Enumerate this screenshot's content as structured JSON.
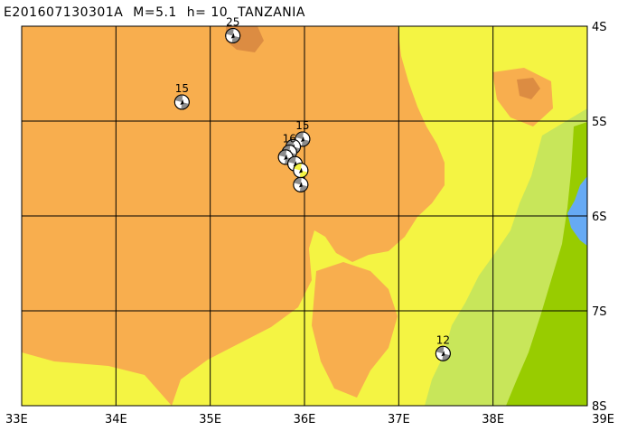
{
  "header": {
    "event_id": "E201607130301A",
    "magnitude": "M=5.1",
    "depth": "h= 10",
    "region": "TANZANIA"
  },
  "map": {
    "lon_range": [
      33,
      39
    ],
    "lat_range": [
      -8,
      -4
    ],
    "lon_ticks": [
      {
        "lon": 33,
        "label": "33E"
      },
      {
        "lon": 34,
        "label": "34E"
      },
      {
        "lon": 35,
        "label": "35E"
      },
      {
        "lon": 36,
        "label": "36E"
      },
      {
        "lon": 37,
        "label": "37E"
      },
      {
        "lon": 38,
        "label": "38E"
      },
      {
        "lon": 39,
        "label": "39E"
      }
    ],
    "lat_ticks": [
      {
        "lat": -4,
        "label": "4S"
      },
      {
        "lat": -5,
        "label": "5S"
      },
      {
        "lat": -6,
        "label": "6S"
      },
      {
        "lat": -7,
        "label": "7S"
      },
      {
        "lat": -8,
        "label": "8S"
      }
    ],
    "colors": {
      "highland": "#f8ae4e",
      "peak": "#dc8c42",
      "upland": "#f4f443",
      "lowland": "#c8e65a",
      "coast": "#98cc00",
      "sea": "#66aaf4",
      "grid": "#000000",
      "mechanism_compression": "#8c8c8c",
      "mechanism_main": "#f4f443"
    }
  },
  "mechanisms": [
    {
      "lon": 35.24,
      "lat": -4.1,
      "depth_label": "25",
      "main": false
    },
    {
      "lon": 34.7,
      "lat": -4.8,
      "depth_label": "15",
      "main": false
    },
    {
      "lon": 35.98,
      "lat": -5.19,
      "depth_label": "15",
      "main": false
    },
    {
      "lon": 35.88,
      "lat": -5.27,
      "depth_label": "",
      "main": false
    },
    {
      "lon": 35.84,
      "lat": -5.33,
      "depth_label": "16",
      "main": false
    },
    {
      "lon": 35.8,
      "lat": -5.38,
      "depth_label": "",
      "main": false
    },
    {
      "lon": 35.9,
      "lat": -5.45,
      "depth_label": "",
      "main": false
    },
    {
      "lon": 35.96,
      "lat": -5.52,
      "depth_label": "",
      "main": true
    },
    {
      "lon": 35.96,
      "lat": -5.67,
      "depth_label": "",
      "main": false
    },
    {
      "lon": 37.47,
      "lat": -7.45,
      "depth_label": "12",
      "main": false
    }
  ]
}
